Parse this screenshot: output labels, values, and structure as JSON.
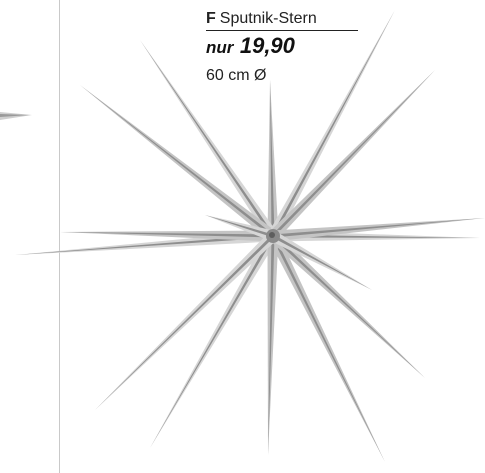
{
  "product": {
    "letter": "F",
    "name": "Sputnik-Stern",
    "price_prefix": "nur",
    "price": "19,90",
    "size": "60 cm Ø"
  },
  "image": {
    "subject": "silver-star-icon",
    "colors": {
      "spike_light": "#f2f2f2",
      "spike_mid": "#cfcfcf",
      "spike_dark": "#9a9a9a",
      "divider": "#c9c9c9"
    }
  }
}
